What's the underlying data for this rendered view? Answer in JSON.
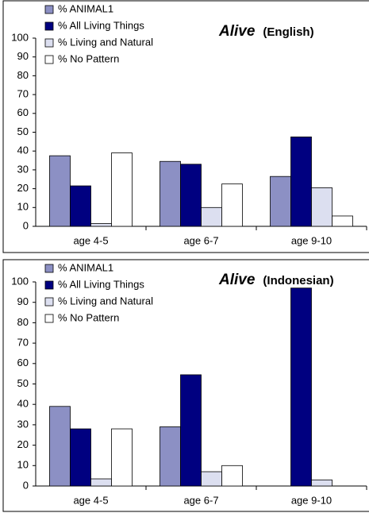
{
  "chart_data": [
    {
      "type": "bar",
      "title": "Alive",
      "subtitle": "(English)",
      "categories": [
        "age 4-5",
        "age 6-7",
        "age 9-10"
      ],
      "series": [
        {
          "name": "% ANIMAL1",
          "color": "#8c90c4",
          "values": [
            37.5,
            34.5,
            26.5
          ]
        },
        {
          "name": "% All Living Things",
          "color": "#000080",
          "values": [
            21.5,
            33,
            47.5
          ]
        },
        {
          "name": "% Living and Natural",
          "color": "#dcdff0",
          "values": [
            1.5,
            10,
            20.5
          ]
        },
        {
          "name": "% No Pattern",
          "color": "#ffffff",
          "values": [
            39,
            22.5,
            5.5
          ]
        }
      ],
      "ylim": [
        0,
        100
      ],
      "yticks": [
        0,
        10,
        20,
        30,
        40,
        50,
        60,
        70,
        80,
        90,
        100
      ],
      "legend": "top-left"
    },
    {
      "type": "bar",
      "title": "Alive",
      "subtitle": "(Indonesian)",
      "categories": [
        "age 4-5",
        "age 6-7",
        "age 9-10"
      ],
      "series": [
        {
          "name": "% ANIMAL1",
          "color": "#8c90c4",
          "values": [
            39,
            29,
            0
          ]
        },
        {
          "name": "% All Living Things",
          "color": "#000080",
          "values": [
            28,
            54.5,
            97
          ]
        },
        {
          "name": "% Living and Natural",
          "color": "#dcdff0",
          "values": [
            3.5,
            7,
            3
          ]
        },
        {
          "name": "% No Pattern",
          "color": "#ffffff",
          "values": [
            28,
            10,
            0
          ]
        }
      ],
      "ylim": [
        0,
        100
      ],
      "yticks": [
        0,
        10,
        20,
        30,
        40,
        50,
        60,
        70,
        80,
        90,
        100
      ],
      "legend": "top-left"
    }
  ]
}
